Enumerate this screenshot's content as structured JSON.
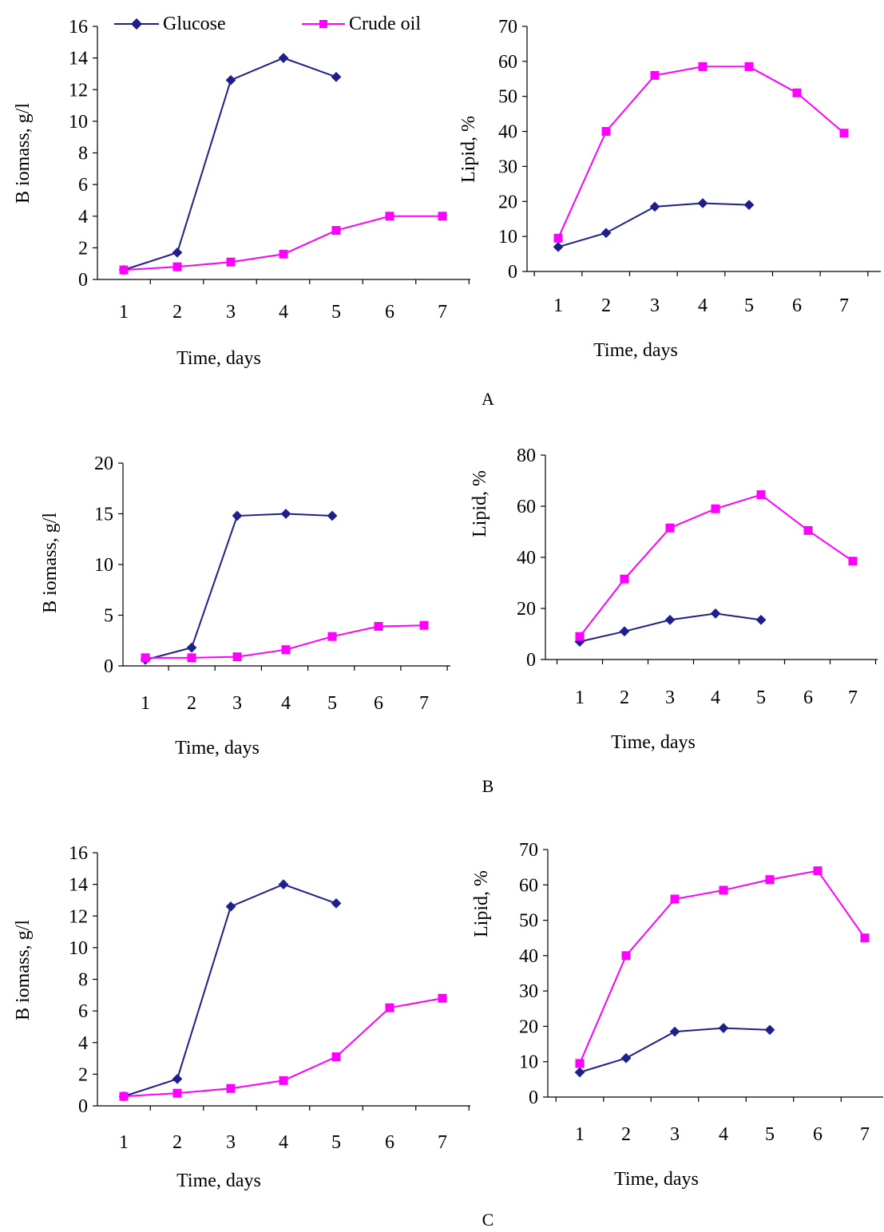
{
  "legend": {
    "glucose_label": "Glucose",
    "crude_oil_label": "Crude oil",
    "glucose_color": "#1f1f8c",
    "crude_oil_color": "#ff00ff"
  },
  "panel_labels": [
    "A",
    "B",
    "C"
  ],
  "chart_data": [
    {
      "type": "line",
      "panel": "A",
      "title": "",
      "xlabel": "Time, days",
      "ylabel": "B iomass, g/l",
      "categories": [
        "1",
        "2",
        "3",
        "4",
        "5",
        "6",
        "7"
      ],
      "ylim": [
        0,
        16
      ],
      "yticks": [
        0,
        2,
        4,
        6,
        8,
        10,
        12,
        14,
        16
      ],
      "series": [
        {
          "name": "Glucose",
          "x": [
            1,
            2,
            3,
            4,
            5
          ],
          "values": [
            0.6,
            1.7,
            12.6,
            14.0,
            12.8
          ]
        },
        {
          "name": "Crude oil",
          "x": [
            1,
            2,
            3,
            4,
            5,
            6,
            7
          ],
          "values": [
            0.6,
            0.8,
            1.1,
            1.6,
            3.1,
            4.0,
            4.0
          ]
        }
      ]
    },
    {
      "type": "line",
      "panel": "A",
      "title": "",
      "xlabel": "Time, days",
      "ylabel": "Lipid, %",
      "categories": [
        "1",
        "2",
        "3",
        "4",
        "5",
        "6",
        "7"
      ],
      "ylim": [
        0,
        70
      ],
      "yticks": [
        0,
        10,
        20,
        30,
        40,
        50,
        60,
        70
      ],
      "series": [
        {
          "name": "Glucose",
          "x": [
            1,
            2,
            3,
            4,
            5
          ],
          "values": [
            7,
            11,
            18.5,
            19.5,
            19
          ]
        },
        {
          "name": "Crude oil",
          "x": [
            1,
            2,
            3,
            4,
            5,
            6,
            7
          ],
          "values": [
            9.5,
            40,
            56,
            58.5,
            58.5,
            51,
            39.5
          ]
        }
      ]
    },
    {
      "type": "line",
      "panel": "B",
      "title": "",
      "xlabel": "Time, days",
      "ylabel": "B iomass, g/l",
      "categories": [
        "1",
        "2",
        "3",
        "4",
        "5",
        "6",
        "7"
      ],
      "ylim": [
        0,
        20
      ],
      "yticks": [
        0,
        5,
        10,
        15,
        20
      ],
      "series": [
        {
          "name": "Glucose",
          "x": [
            1,
            2,
            3,
            4,
            5
          ],
          "values": [
            0.6,
            1.8,
            14.8,
            15.0,
            14.8
          ]
        },
        {
          "name": "Crude oil",
          "x": [
            1,
            2,
            3,
            4,
            5,
            6,
            7
          ],
          "values": [
            0.8,
            0.8,
            0.9,
            1.6,
            2.9,
            3.9,
            4.0
          ]
        }
      ]
    },
    {
      "type": "line",
      "panel": "B",
      "title": "",
      "xlabel": "Time, days",
      "ylabel": "Lipid, %",
      "categories": [
        "1",
        "2",
        "3",
        "4",
        "5",
        "6",
        "7"
      ],
      "ylim": [
        0,
        80
      ],
      "yticks": [
        0,
        20,
        40,
        60,
        80
      ],
      "series": [
        {
          "name": "Glucose",
          "x": [
            1,
            2,
            3,
            4,
            5
          ],
          "values": [
            7,
            11,
            15.5,
            18,
            15.5
          ]
        },
        {
          "name": "Crude oil",
          "x": [
            1,
            2,
            3,
            4,
            5,
            6,
            7
          ],
          "values": [
            9,
            31.5,
            51.5,
            59,
            64.5,
            50.5,
            38.5
          ]
        }
      ]
    },
    {
      "type": "line",
      "panel": "C",
      "title": "",
      "xlabel": "Time, days",
      "ylabel": "B iomass, g/l",
      "categories": [
        "1",
        "2",
        "3",
        "4",
        "5",
        "6",
        "7"
      ],
      "ylim": [
        0,
        16
      ],
      "yticks": [
        0,
        2,
        4,
        6,
        8,
        10,
        12,
        14,
        16
      ],
      "series": [
        {
          "name": "Glucose",
          "x": [
            1,
            2,
            3,
            4,
            5
          ],
          "values": [
            0.6,
            1.7,
            12.6,
            14.0,
            12.8
          ]
        },
        {
          "name": "Crude oil",
          "x": [
            1,
            2,
            3,
            4,
            5,
            6,
            7
          ],
          "values": [
            0.6,
            0.8,
            1.1,
            1.6,
            3.1,
            6.2,
            6.8
          ]
        }
      ]
    },
    {
      "type": "line",
      "panel": "C",
      "title": "",
      "xlabel": "Time, days",
      "ylabel": "Lipid, %",
      "categories": [
        "1",
        "2",
        "3",
        "4",
        "5",
        "6",
        "7"
      ],
      "ylim": [
        0,
        70
      ],
      "yticks": [
        0,
        10,
        20,
        30,
        40,
        50,
        60,
        70
      ],
      "series": [
        {
          "name": "Glucose",
          "x": [
            1,
            2,
            3,
            4,
            5
          ],
          "values": [
            7,
            11,
            18.5,
            19.5,
            19
          ]
        },
        {
          "name": "Crude oil",
          "x": [
            1,
            2,
            3,
            4,
            5,
            6,
            7
          ],
          "values": [
            9.5,
            40,
            56,
            58.5,
            61.5,
            64,
            45
          ]
        }
      ]
    }
  ]
}
